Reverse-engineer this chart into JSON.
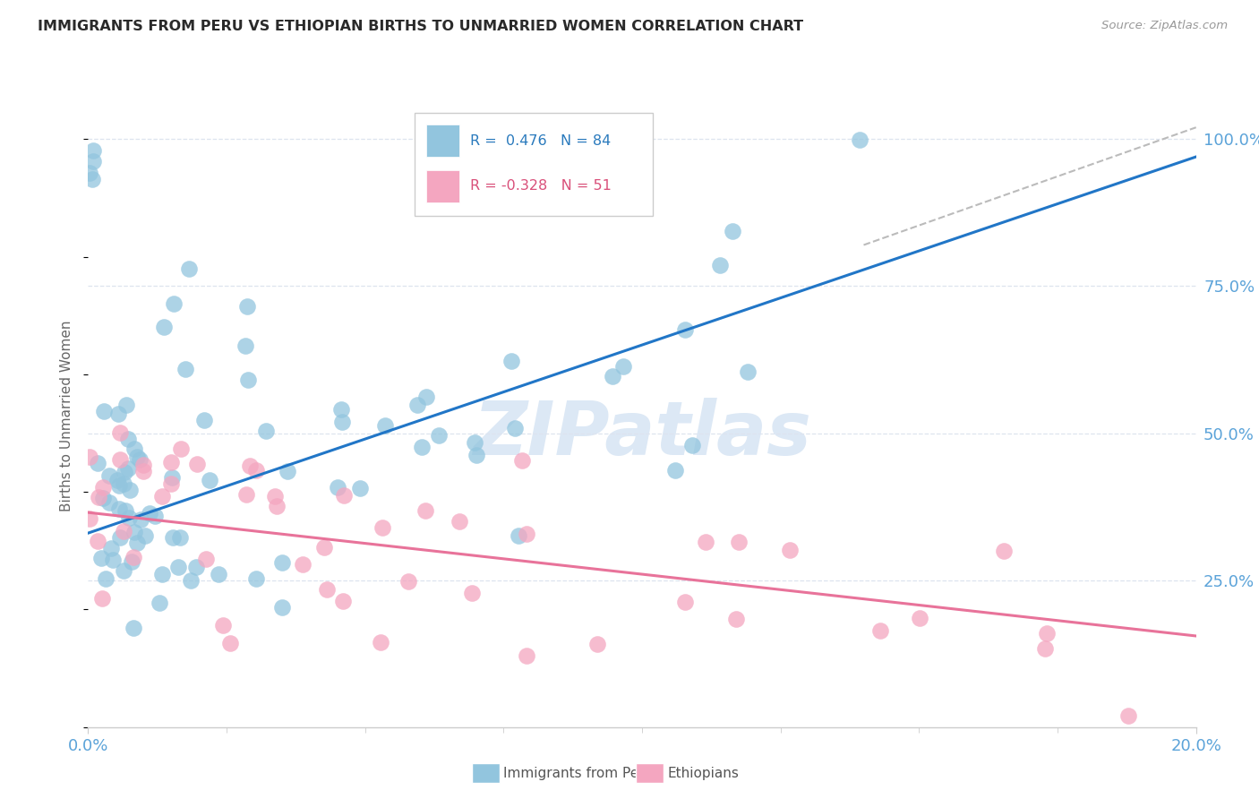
{
  "title": "IMMIGRANTS FROM PERU VS ETHIOPIAN BIRTHS TO UNMARRIED WOMEN CORRELATION CHART",
  "source": "Source: ZipAtlas.com",
  "ylabel": "Births to Unmarried Women",
  "legend_blue": {
    "R": "0.476",
    "N": "84",
    "label": "Immigrants from Peru"
  },
  "legend_pink": {
    "R": "-0.328",
    "N": "51",
    "label": "Ethiopians"
  },
  "blue_color": "#92c5de",
  "pink_color": "#f4a6c0",
  "blue_line_color": "#2176c7",
  "pink_line_color": "#e8739a",
  "dashed_line_color": "#bbbbbb",
  "tick_color": "#5ba3d9",
  "watermark_color": "#dce8f5",
  "peru_line_x0": 0.0,
  "peru_line_y0": 0.33,
  "peru_line_x1": 0.2,
  "peru_line_y1": 0.97,
  "eth_line_x0": 0.0,
  "eth_line_y0": 0.365,
  "eth_line_x1": 0.2,
  "eth_line_y1": 0.155,
  "diag_line_x0": 0.14,
  "diag_line_y0": 0.82,
  "diag_line_x1": 0.2,
  "diag_line_y1": 1.02,
  "ylim": [
    0.0,
    1.06
  ],
  "xlim": [
    0.0,
    0.2
  ]
}
